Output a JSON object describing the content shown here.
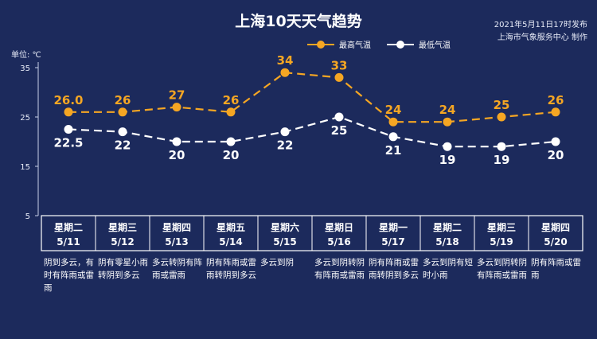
{
  "header": {
    "title": "上海10天天气趋势",
    "publish_time": "2021年5月11日17时发布",
    "publish_source": "上海市气象服务中心 制作",
    "unit": "单位: ℃"
  },
  "chart_data": {
    "type": "line",
    "categories": [
      "星期二 5/11",
      "星期三 5/12",
      "星期四 5/13",
      "星期五 5/14",
      "星期六 5/15",
      "星期日 5/16",
      "星期一 5/17",
      "星期二 5/18",
      "星期三 5/19",
      "星期四 5/20"
    ],
    "weekdays": [
      "星期二",
      "星期三",
      "星期四",
      "星期五",
      "星期六",
      "星期日",
      "星期一",
      "星期二",
      "星期三",
      "星期四"
    ],
    "dates": [
      "5/11",
      "5/12",
      "5/13",
      "5/14",
      "5/15",
      "5/16",
      "5/17",
      "5/18",
      "5/19",
      "5/20"
    ],
    "series": [
      {
        "name": "最高气温",
        "color": "#f5a623",
        "values": [
          26.0,
          26,
          27,
          26,
          34,
          33,
          24,
          24,
          25,
          26
        ],
        "labels": [
          "26.0",
          "26",
          "27",
          "26",
          "34",
          "33",
          "24",
          "24",
          "25",
          "26"
        ]
      },
      {
        "name": "最低气温",
        "color": "#ffffff",
        "values": [
          22.5,
          22,
          20,
          20,
          22,
          25,
          21,
          19,
          19,
          20
        ],
        "labels": [
          "22.5",
          "22",
          "20",
          "20",
          "22",
          "25",
          "21",
          "19",
          "19",
          "20"
        ]
      }
    ],
    "ylim": [
      5,
      35
    ],
    "yticks": [
      "5",
      "15",
      "25",
      "35"
    ],
    "ylabel": "单位: ℃",
    "legend_position": "top-center",
    "grid": false
  },
  "descriptions": [
    "阴到多云，有时有阵雨或雷雨",
    "阴有零星小雨转阴到多云",
    "多云转阴有阵雨或雷雨",
    "阴有阵雨或雷雨转阴到多云",
    "多云到阴",
    "多云到阴转阴有阵雨或雷雨",
    "阴有阵雨或雷雨转阴到多云",
    "多云到阴有短时小雨",
    "多云到阴转阴有阵雨或雷雨",
    "阴有阵雨或雷雨"
  ],
  "colors": {
    "background": "#1c2a5c",
    "high": "#f5a623",
    "low": "#ffffff",
    "axis": "#c8d0e8"
  }
}
